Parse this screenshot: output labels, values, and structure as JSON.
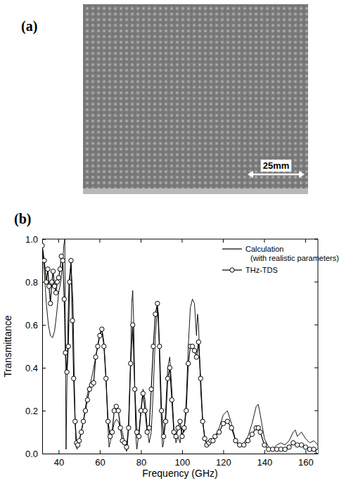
{
  "panel_a": {
    "label": "(a)",
    "scale_bar": "25mm"
  },
  "panel_b": {
    "label": "(b)"
  },
  "chart_data": {
    "type": "line",
    "x_label": "Frequency (GHz)",
    "y_label": "Transmittance",
    "xlim": [
      32,
      166
    ],
    "xticks": [
      40,
      60,
      80,
      100,
      120,
      140,
      160
    ],
    "ylim": [
      0,
      1
    ],
    "yticks": [
      {
        "value": 0,
        "label": "0.0"
      },
      {
        "value": 0.2,
        "label": "0.2"
      },
      {
        "value": 0.4,
        "label": "0.4"
      },
      {
        "value": 0.6,
        "label": "0.6"
      },
      {
        "value": 0.8,
        "label": "0.8"
      },
      {
        "value": 1,
        "label": "1.0"
      }
    ],
    "legend": "top-right",
    "series": [
      {
        "name": "Calculation (with realistic parameters)",
        "color": "#000000",
        "type": "line",
        "marker": "none",
        "line_style": "solid",
        "x": [
          32,
          33,
          34,
          35,
          36,
          37,
          38,
          39,
          40,
          41,
          42,
          42.5,
          43,
          43.3,
          43.6,
          44,
          44.5,
          45,
          46,
          47,
          47.5,
          48,
          48.5,
          49,
          50,
          52,
          54,
          56,
          58,
          60,
          61,
          62,
          63,
          64,
          64.5,
          65,
          66,
          67,
          68,
          69,
          70,
          71,
          72,
          73,
          73.5,
          74,
          75,
          75.5,
          76,
          76.5,
          77,
          77.5,
          78,
          79,
          80,
          81,
          82,
          83,
          84,
          85,
          86,
          87,
          88,
          88.5,
          89,
          90,
          90.5,
          91,
          92,
          93,
          94,
          95,
          96,
          97,
          98,
          99,
          100,
          101,
          102,
          103,
          104,
          105,
          106,
          107,
          107.5,
          108,
          108.5,
          109,
          110,
          111,
          112,
          113,
          114,
          116,
          118,
          120,
          122,
          124,
          126,
          128,
          130,
          132,
          134,
          136,
          137,
          138,
          140,
          142,
          144,
          146,
          148,
          150,
          152,
          154,
          155,
          156,
          158,
          160,
          162,
          164,
          166
        ],
        "values": [
          0.97,
          0.85,
          0.7,
          0.6,
          0.55,
          0.54,
          0.57,
          0.65,
          0.75,
          0.8,
          0.9,
          0.97,
          1.0,
          0.5,
          0.02,
          0.3,
          0.6,
          0.8,
          0.88,
          0.7,
          0.4,
          0.15,
          0.03,
          0.02,
          0.06,
          0.15,
          0.28,
          0.35,
          0.45,
          0.56,
          0.58,
          0.52,
          0.35,
          0.12,
          0.03,
          0.05,
          0.1,
          0.14,
          0.16,
          0.15,
          0.12,
          0.1,
          0.05,
          0.01,
          0.05,
          0.15,
          0.45,
          0.7,
          0.76,
          0.6,
          0.3,
          0.08,
          0.02,
          0.1,
          0.2,
          0.3,
          0.25,
          0.12,
          0.05,
          0.1,
          0.3,
          0.55,
          0.68,
          0.65,
          0.45,
          0.12,
          0.03,
          0.05,
          0.2,
          0.4,
          0.45,
          0.3,
          0.12,
          0.05,
          0.08,
          0.05,
          0.12,
          0.1,
          0.25,
          0.5,
          0.68,
          0.72,
          0.7,
          0.55,
          0.65,
          0.6,
          0.45,
          0.3,
          0.15,
          0.08,
          0.04,
          0.06,
          0.05,
          0.08,
          0.12,
          0.18,
          0.2,
          0.14,
          0.06,
          0.03,
          0.05,
          0.08,
          0.14,
          0.22,
          0.23,
          0.18,
          0.07,
          0.03,
          0.02,
          0.04,
          0.05,
          0.04,
          0.06,
          0.1,
          0.11,
          0.08,
          0.1,
          0.07,
          0.05,
          0.06,
          0.04
        ]
      },
      {
        "name": "THz-TDS",
        "color": "#000000",
        "type": "line",
        "marker": "circle",
        "line_style": "solid",
        "x": [
          32,
          33,
          34,
          34.7,
          35.3,
          36,
          36.7,
          37.3,
          38,
          38.7,
          39.3,
          40,
          40.7,
          41.3,
          42,
          42.7,
          43.3,
          44,
          44.7,
          45.3,
          46,
          46.7,
          47.3,
          48,
          48.7,
          49.3,
          50,
          51,
          52,
          53,
          54,
          55,
          56,
          57,
          58,
          59,
          60,
          61,
          62,
          63,
          64,
          65,
          66,
          67,
          68,
          69,
          70,
          71,
          72,
          73,
          74,
          75,
          76,
          77,
          78,
          79,
          80,
          81,
          82,
          83,
          84,
          85,
          86,
          87,
          88,
          89,
          90,
          91,
          92,
          93,
          94,
          95,
          96,
          97,
          98,
          99,
          100,
          101,
          102,
          103,
          104,
          105,
          106,
          107,
          108,
          109,
          110,
          111,
          112,
          113,
          114,
          115,
          116,
          118,
          120,
          122,
          124,
          126,
          128,
          130,
          132,
          134,
          136,
          137,
          138,
          140,
          142,
          144,
          146,
          148,
          150,
          152,
          154,
          156,
          158,
          160,
          162,
          164,
          166
        ],
        "values": [
          0.97,
          0.9,
          0.8,
          0.86,
          0.78,
          0.7,
          0.8,
          0.85,
          0.78,
          0.75,
          0.8,
          0.82,
          0.86,
          0.92,
          0.9,
          0.72,
          0.47,
          0.38,
          0.5,
          0.8,
          0.9,
          0.62,
          0.35,
          0.15,
          0.05,
          0.04,
          0.06,
          0.1,
          0.15,
          0.2,
          0.25,
          0.3,
          0.32,
          0.33,
          0.45,
          0.5,
          0.55,
          0.58,
          0.5,
          0.35,
          0.15,
          0.08,
          0.1,
          0.2,
          0.22,
          0.2,
          0.12,
          0.06,
          0.05,
          0.03,
          0.12,
          0.42,
          0.6,
          0.3,
          0.1,
          0.08,
          0.2,
          0.28,
          0.2,
          0.1,
          0.12,
          0.3,
          0.5,
          0.65,
          0.7,
          0.5,
          0.2,
          0.08,
          0.15,
          0.35,
          0.4,
          0.25,
          0.1,
          0.08,
          0.12,
          0.15,
          0.08,
          0.12,
          0.2,
          0.42,
          0.5,
          0.5,
          0.48,
          0.45,
          0.52,
          0.35,
          0.15,
          0.07,
          0.04,
          0.05,
          0.06,
          0.06,
          0.08,
          0.1,
          0.14,
          0.15,
          0.12,
          0.06,
          0.04,
          0.04,
          0.06,
          0.09,
          0.12,
          0.12,
          0.1,
          0.04,
          0.02,
          0.02,
          0.02,
          0.02,
          0.02,
          0.03,
          0.05,
          0.04,
          0.04,
          0.03,
          0.02,
          0.02,
          0.01
        ]
      }
    ]
  }
}
